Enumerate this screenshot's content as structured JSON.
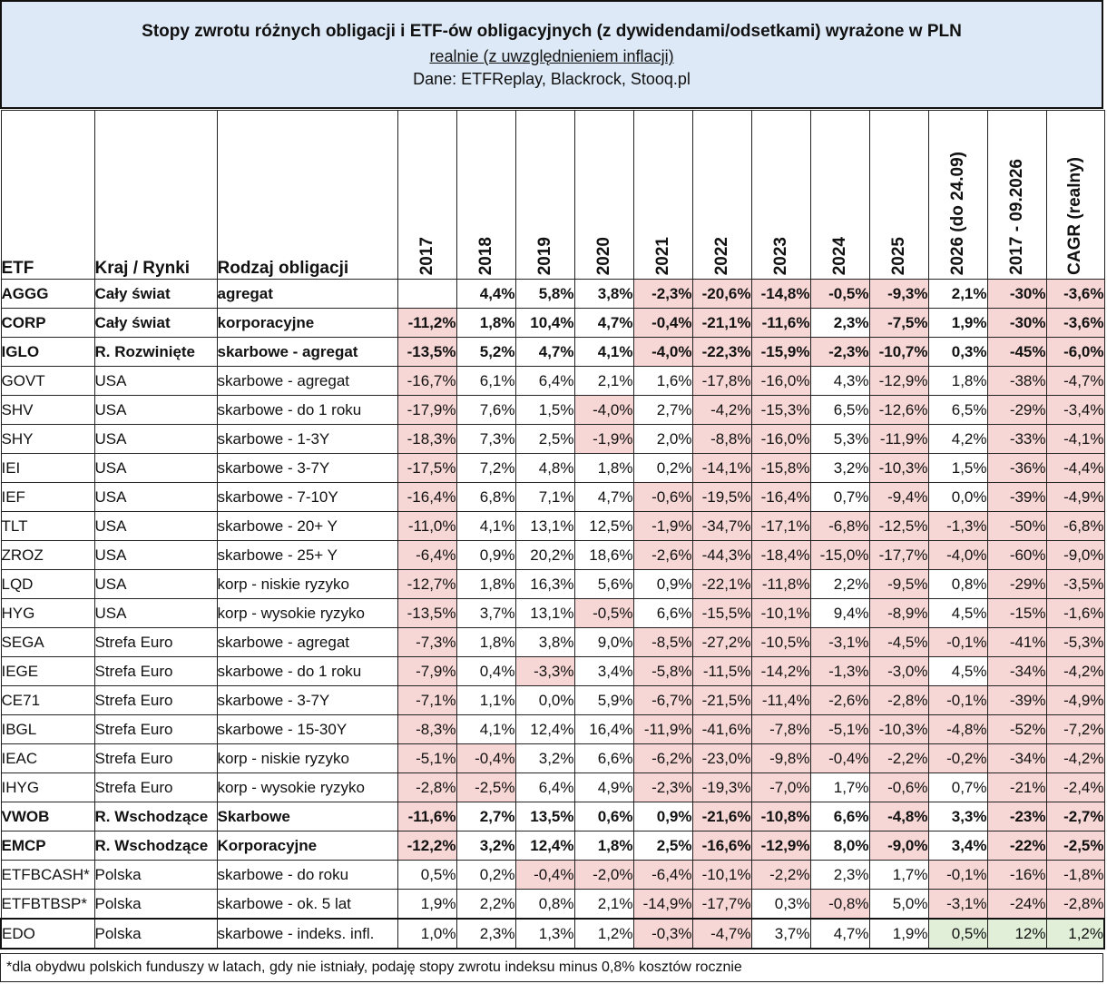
{
  "header": {
    "title": "Stopy zwrotu różnych obligacji i ETF-ów obligacyjnych (z dywidendami/odsetkami) wyrażone w PLN",
    "subtitle": "realnie (z uwzględnieniem inflacji)",
    "source": "Dane: ETFReplay, Blackrock, Stooq.pl"
  },
  "columns": [
    "ETF",
    "Kraj / Rynki",
    "Rodzaj obligacji",
    "2017",
    "2018",
    "2019",
    "2020",
    "2021",
    "2022",
    "2023",
    "2024",
    "2025",
    "2026 (do 24.09)",
    "2017 - 09.2026",
    "CAGR (realny)"
  ],
  "colors": {
    "negative": "#f7d7d5",
    "green": "#e1efd9",
    "header": "#dde9f6"
  },
  "rows": [
    {
      "etf": "AGGG",
      "kraj": "Cały świat",
      "rodzaj": "agregat",
      "bold": true,
      "v": [
        "",
        "4,4%",
        "5,8%",
        "3,8%",
        "-2,3%",
        "-20,6%",
        "-14,8%",
        "-0,5%",
        "-9,3%",
        "2,1%",
        "-30%",
        "-3,6%"
      ]
    },
    {
      "etf": "CORP",
      "kraj": "Cały świat",
      "rodzaj": "korporacyjne",
      "bold": true,
      "v": [
        "-11,2%",
        "1,8%",
        "10,4%",
        "4,7%",
        "-0,4%",
        "-21,1%",
        "-11,6%",
        "2,3%",
        "-7,5%",
        "1,9%",
        "-30%",
        "-3,6%"
      ]
    },
    {
      "etf": "IGLO",
      "kraj": "R. Rozwinięte",
      "rodzaj": "skarbowe - agregat",
      "bold": true,
      "v": [
        "-13,5%",
        "5,2%",
        "4,7%",
        "4,1%",
        "-4,0%",
        "-22,3%",
        "-15,9%",
        "-2,3%",
        "-10,7%",
        "0,3%",
        "-45%",
        "-6,0%"
      ]
    },
    {
      "etf": "GOVT",
      "kraj": "USA",
      "rodzaj": "skarbowe - agregat",
      "bold": false,
      "v": [
        "-16,7%",
        "6,1%",
        "6,4%",
        "2,1%",
        "1,6%",
        "-17,8%",
        "-16,0%",
        "4,3%",
        "-12,9%",
        "1,8%",
        "-38%",
        "-4,7%"
      ]
    },
    {
      "etf": "SHV",
      "kraj": "USA",
      "rodzaj": "skarbowe - do 1 roku",
      "bold": false,
      "v": [
        "-17,9%",
        "7,6%",
        "1,5%",
        "-4,0%",
        "2,7%",
        "-4,2%",
        "-15,3%",
        "6,5%",
        "-12,6%",
        "6,5%",
        "-29%",
        "-3,4%"
      ]
    },
    {
      "etf": "SHY",
      "kraj": "USA",
      "rodzaj": "skarbowe - 1-3Y",
      "bold": false,
      "v": [
        "-18,3%",
        "7,3%",
        "2,5%",
        "-1,9%",
        "2,0%",
        "-8,8%",
        "-16,0%",
        "5,3%",
        "-11,9%",
        "4,2%",
        "-33%",
        "-4,1%"
      ]
    },
    {
      "etf": "IEI",
      "kraj": "USA",
      "rodzaj": "skarbowe - 3-7Y",
      "bold": false,
      "v": [
        "-17,5%",
        "7,2%",
        "4,8%",
        "1,8%",
        "0,2%",
        "-14,1%",
        "-15,8%",
        "3,2%",
        "-10,3%",
        "1,5%",
        "-36%",
        "-4,4%"
      ]
    },
    {
      "etf": "IEF",
      "kraj": "USA",
      "rodzaj": "skarbowe - 7-10Y",
      "bold": false,
      "v": [
        "-16,4%",
        "6,8%",
        "7,1%",
        "4,7%",
        "-0,6%",
        "-19,5%",
        "-16,4%",
        "0,7%",
        "-9,4%",
        "0,0%",
        "-39%",
        "-4,9%"
      ]
    },
    {
      "etf": "TLT",
      "kraj": "USA",
      "rodzaj": "skarbowe - 20+ Y",
      "bold": false,
      "v": [
        "-11,0%",
        "4,1%",
        "13,1%",
        "12,5%",
        "-1,9%",
        "-34,7%",
        "-17,1%",
        "-6,8%",
        "-12,5%",
        "-1,3%",
        "-50%",
        "-6,8%"
      ]
    },
    {
      "etf": "ZROZ",
      "kraj": "USA",
      "rodzaj": "skarbowe - 25+ Y",
      "bold": false,
      "v": [
        "-6,4%",
        "0,9%",
        "20,2%",
        "18,6%",
        "-2,6%",
        "-44,3%",
        "-18,4%",
        "-15,0%",
        "-17,7%",
        "-4,0%",
        "-60%",
        "-9,0%"
      ]
    },
    {
      "etf": "LQD",
      "kraj": "USA",
      "rodzaj": "korp - niskie ryzyko",
      "bold": false,
      "v": [
        "-12,7%",
        "1,8%",
        "16,3%",
        "5,6%",
        "0,9%",
        "-22,1%",
        "-11,8%",
        "2,2%",
        "-9,5%",
        "0,8%",
        "-29%",
        "-3,5%"
      ]
    },
    {
      "etf": "HYG",
      "kraj": "USA",
      "rodzaj": "korp - wysokie ryzyko",
      "bold": false,
      "v": [
        "-13,5%",
        "3,7%",
        "13,1%",
        "-0,5%",
        "6,6%",
        "-15,5%",
        "-10,1%",
        "9,4%",
        "-8,9%",
        "4,5%",
        "-15%",
        "-1,6%"
      ]
    },
    {
      "etf": "SEGA",
      "kraj": "Strefa Euro",
      "rodzaj": "skarbowe - agregat",
      "bold": false,
      "v": [
        "-7,3%",
        "1,8%",
        "3,8%",
        "9,0%",
        "-8,5%",
        "-27,2%",
        "-10,5%",
        "-3,1%",
        "-4,5%",
        "-0,1%",
        "-41%",
        "-5,3%"
      ]
    },
    {
      "etf": "IEGE",
      "kraj": "Strefa Euro",
      "rodzaj": "skarbowe - do 1 roku",
      "bold": false,
      "v": [
        "-7,9%",
        "0,4%",
        "-3,3%",
        "3,4%",
        "-5,8%",
        "-11,5%",
        "-14,2%",
        "-1,3%",
        "-3,0%",
        "4,5%",
        "-34%",
        "-4,2%"
      ]
    },
    {
      "etf": "CE71",
      "kraj": "Strefa Euro",
      "rodzaj": "skarbowe - 3-7Y",
      "bold": false,
      "v": [
        "-7,1%",
        "1,1%",
        "0,0%",
        "5,9%",
        "-6,7%",
        "-21,5%",
        "-11,4%",
        "-2,6%",
        "-2,8%",
        "-0,1%",
        "-39%",
        "-4,9%"
      ]
    },
    {
      "etf": "IBGL",
      "kraj": "Strefa Euro",
      "rodzaj": "skarbowe - 15-30Y",
      "bold": false,
      "v": [
        "-8,3%",
        "4,1%",
        "12,4%",
        "16,4%",
        "-11,9%",
        "-41,6%",
        "-7,8%",
        "-5,1%",
        "-10,3%",
        "-4,8%",
        "-52%",
        "-7,2%"
      ]
    },
    {
      "etf": "IEAC",
      "kraj": "Strefa Euro",
      "rodzaj": "korp - niskie ryzyko",
      "bold": false,
      "v": [
        "-5,1%",
        "-0,4%",
        "3,2%",
        "6,6%",
        "-6,2%",
        "-23,0%",
        "-9,8%",
        "-0,4%",
        "-2,2%",
        "-0,2%",
        "-34%",
        "-4,2%"
      ]
    },
    {
      "etf": "IHYG",
      "kraj": "Strefa Euro",
      "rodzaj": "korp - wysokie ryzyko",
      "bold": false,
      "v": [
        "-2,8%",
        "-2,5%",
        "6,4%",
        "4,9%",
        "-2,3%",
        "-19,3%",
        "-7,0%",
        "1,7%",
        "-0,6%",
        "0,7%",
        "-21%",
        "-2,4%"
      ]
    },
    {
      "etf": "VWOB",
      "kraj": "R. Wschodzące",
      "rodzaj": "Skarbowe",
      "bold": true,
      "v": [
        "-11,6%",
        "2,7%",
        "13,5%",
        "0,6%",
        "0,9%",
        "-21,6%",
        "-10,8%",
        "6,6%",
        "-4,8%",
        "3,3%",
        "-23%",
        "-2,7%"
      ]
    },
    {
      "etf": "EMCP",
      "kraj": "R. Wschodzące",
      "rodzaj": "Korporacyjne",
      "bold": true,
      "v": [
        "-12,2%",
        "3,2%",
        "12,4%",
        "1,8%",
        "2,5%",
        "-16,6%",
        "-12,9%",
        "8,0%",
        "-9,0%",
        "3,4%",
        "-22%",
        "-2,5%"
      ]
    },
    {
      "etf": "ETFBCASH*",
      "kraj": "Polska",
      "rodzaj": "skarbowe - do roku",
      "bold": false,
      "v": [
        "0,5%",
        "0,2%",
        "-0,4%",
        "-2,0%",
        "-6,4%",
        "-10,1%",
        "-2,2%",
        "2,3%",
        "1,7%",
        "-0,1%",
        "-16%",
        "-1,8%"
      ]
    },
    {
      "etf": "ETFBTBSP*",
      "kraj": "Polska",
      "rodzaj": "skarbowe - ok. 5 lat",
      "bold": false,
      "v": [
        "1,9%",
        "2,2%",
        "0,8%",
        "2,1%",
        "-14,9%",
        "-17,7%",
        "0,3%",
        "-0,8%",
        "5,0%",
        "-3,1%",
        "-24%",
        "-2,8%"
      ]
    },
    {
      "etf": "EDO",
      "kraj": "Polska",
      "rodzaj": "skarbowe - indeks. infl.",
      "bold": false,
      "edo": true,
      "v": [
        "1,0%",
        "2,3%",
        "1,3%",
        "1,2%",
        "-0,3%",
        "-4,7%",
        "3,7%",
        "4,7%",
        "1,9%",
        "0,5%",
        "12%",
        "1,2%"
      ]
    }
  ],
  "footnote": "*dla obydwu polskich funduszy w latach, gdy nie istniały, podaję stopy zwrotu indeksu minus 0,8% kosztów rocznie"
}
